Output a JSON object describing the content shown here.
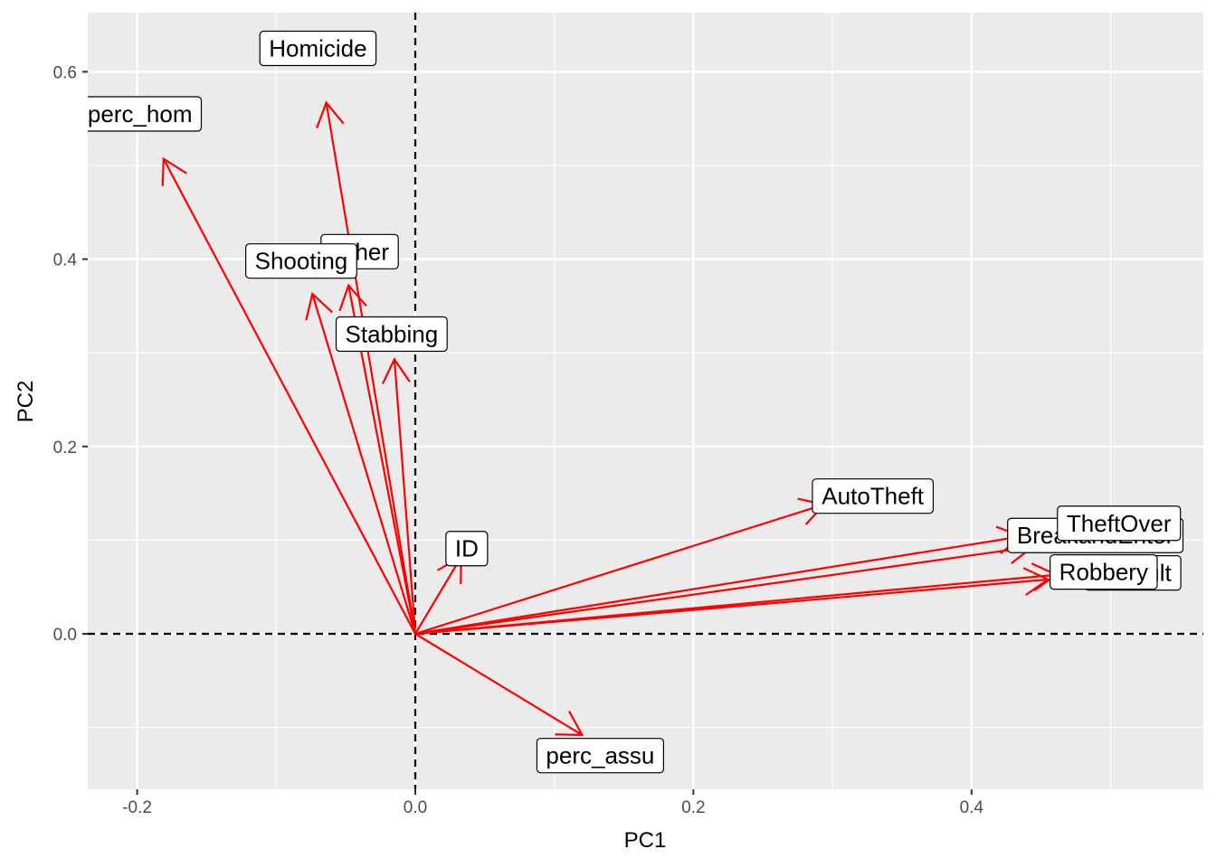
{
  "chart_data": {
    "type": "biplot-arrows",
    "xlabel": "PC1",
    "ylabel": "PC2",
    "xlim": [
      -0.2,
      0.55
    ],
    "ylim": [
      -0.15,
      0.65
    ],
    "x_ticks": [
      -0.2,
      0.0,
      0.2,
      0.4
    ],
    "y_ticks": [
      0.0,
      0.2,
      0.4,
      0.6
    ],
    "x_tick_labels": [
      "-0.2",
      "0.0",
      "0.2",
      "0.4"
    ],
    "y_tick_labels": [
      "0.0",
      "0.2",
      "0.4",
      "0.6"
    ],
    "grid": true,
    "reference_lines": {
      "x": 0,
      "y": 0,
      "style": "dashed"
    },
    "arrow_color": "#ff0000",
    "background_color": "#ebebeb",
    "vectors": [
      {
        "name": "Homicide",
        "x": -0.064,
        "y": 0.567,
        "label_x": -0.07,
        "label_y": 0.625
      },
      {
        "name": "perc_hom",
        "x": -0.181,
        "y": 0.507,
        "label_x": -0.198,
        "label_y": 0.555
      },
      {
        "name": "Other",
        "x": -0.048,
        "y": 0.372,
        "label_x": -0.04,
        "label_y": 0.408
      },
      {
        "name": "Shooting",
        "x": -0.074,
        "y": 0.363,
        "label_x": -0.082,
        "label_y": 0.398
      },
      {
        "name": "Stabbing",
        "x": -0.015,
        "y": 0.293,
        "label_x": -0.017,
        "label_y": 0.32
      },
      {
        "name": "ID",
        "x": 0.033,
        "y": 0.082,
        "label_x": 0.037,
        "label_y": 0.091
      },
      {
        "name": "AutoTheft",
        "x": 0.294,
        "y": 0.138,
        "label_x": 0.329,
        "label_y": 0.147
      },
      {
        "name": "BreakandEnter",
        "x": 0.436,
        "y": 0.104,
        "label_x": 0.489,
        "label_y": 0.105
      },
      {
        "name": "TheftOver",
        "x": 0.444,
        "y": 0.093,
        "label_x": 0.506,
        "label_y": 0.118
      },
      {
        "name": "Assault",
        "x": 0.461,
        "y": 0.063,
        "label_x": 0.516,
        "label_y": 0.065
      },
      {
        "name": "Robbery",
        "x": 0.455,
        "y": 0.058,
        "label_x": 0.495,
        "label_y": 0.066
      },
      {
        "name": "perc_assu",
        "x": 0.12,
        "y": -0.108,
        "label_x": 0.133,
        "label_y": -0.13
      }
    ]
  }
}
